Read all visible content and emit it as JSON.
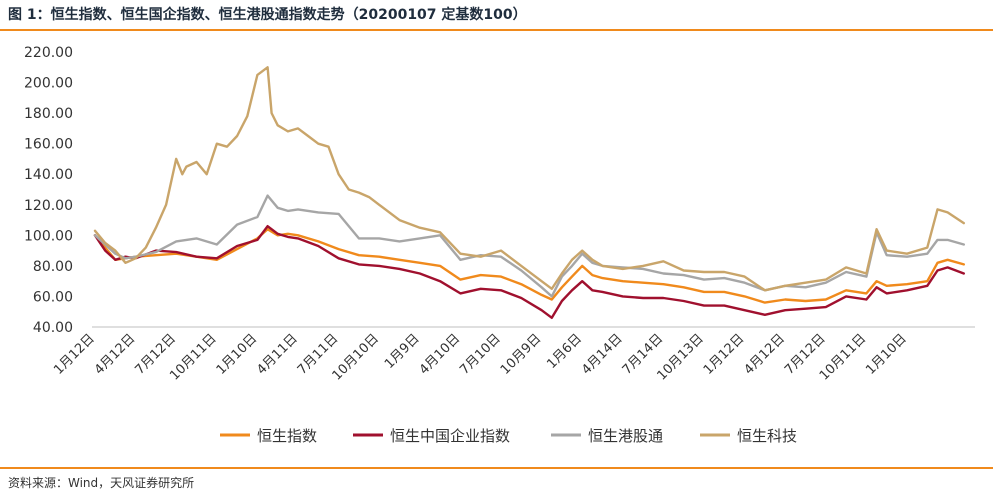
{
  "figure": {
    "title": "图 1：恒生指数、恒生国企指数、恒生港股通指数走势（20200107 定基数100）",
    "source": "资料来源：Wind，天风证券研究所"
  },
  "colors": {
    "accent_rule": "#f08a1c",
    "axis": "#bfbfbf"
  },
  "chart_data": {
    "type": "line",
    "title": "",
    "xlabel": "",
    "ylabel": "",
    "ylim": [
      40,
      220
    ],
    "y_ticks": [
      "40.00",
      "60.00",
      "80.00",
      "100.00",
      "120.00",
      "140.00",
      "160.00",
      "180.00",
      "200.00",
      "220.00"
    ],
    "x_tick_labels": [
      "1月12日",
      "4月12日",
      "7月12日",
      "10月11日",
      "1月10日",
      "4月11日",
      "7月11日",
      "10月10日",
      "1月9日",
      "4月10日",
      "7月10日",
      "10月9日",
      "1月6日",
      "4月14日",
      "7月14日",
      "10月13日",
      "1月12日",
      "4月12日",
      "7月12日",
      "10月11日",
      "1月10日"
    ],
    "x_tick_index": [
      0,
      1,
      2,
      3,
      4,
      5,
      6,
      7,
      8,
      9,
      10,
      11,
      12,
      13,
      14,
      15,
      16,
      17,
      18,
      19,
      20
    ],
    "x_range": [
      0,
      21.5
    ],
    "legend_position": "bottom",
    "series": [
      {
        "name": "恒生指数",
        "color": "#f08a1c",
        "x": [
          0,
          0.25,
          0.5,
          0.75,
          1,
          1.5,
          2,
          2.5,
          3,
          3.5,
          4,
          4.25,
          4.5,
          4.75,
          5,
          5.5,
          6,
          6.5,
          7,
          7.5,
          8,
          8.5,
          9,
          9.5,
          10,
          10.5,
          11,
          11.25,
          11.5,
          11.75,
          12,
          12.25,
          12.5,
          13,
          13.5,
          14,
          14.5,
          15,
          15.5,
          16,
          16.5,
          17,
          17.5,
          18,
          18.5,
          19,
          19.25,
          19.5,
          20,
          20.5,
          20.75,
          21,
          21.4
        ],
        "values": [
          100,
          92,
          84,
          85,
          86,
          87,
          88,
          86,
          84,
          91,
          98,
          104,
          100,
          101,
          100,
          96,
          91,
          87,
          86,
          84,
          82,
          80,
          71,
          74,
          73,
          68,
          61,
          58,
          66,
          73,
          80,
          74,
          72,
          70,
          69,
          68,
          66,
          63,
          63,
          60,
          56,
          58,
          57,
          58,
          64,
          62,
          70,
          67,
          68,
          70,
          82,
          84,
          81
        ]
      },
      {
        "name": "恒生中国企业指数",
        "color": "#a0102e",
        "x": [
          0,
          0.25,
          0.5,
          0.75,
          1,
          1.5,
          2,
          2.5,
          3,
          3.5,
          4,
          4.25,
          4.5,
          4.75,
          5,
          5.5,
          6,
          6.5,
          7,
          7.5,
          8,
          8.5,
          9,
          9.5,
          10,
          10.5,
          11,
          11.25,
          11.5,
          11.75,
          12,
          12.25,
          12.5,
          13,
          13.5,
          14,
          14.5,
          15,
          15.5,
          16,
          16.5,
          17,
          17.5,
          18,
          18.5,
          19,
          19.25,
          19.5,
          20,
          20.5,
          20.75,
          21,
          21.4
        ],
        "values": [
          100,
          90,
          84,
          86,
          85,
          90,
          89,
          86,
          85,
          93,
          97,
          106,
          101,
          99,
          98,
          93,
          85,
          81,
          80,
          78,
          75,
          70,
          62,
          65,
          64,
          59,
          51,
          46,
          57,
          64,
          70,
          64,
          63,
          60,
          59,
          59,
          57,
          54,
          54,
          51,
          48,
          51,
          52,
          53,
          60,
          58,
          66,
          62,
          64,
          67,
          77,
          79,
          75
        ]
      },
      {
        "name": "恒生港股通",
        "color": "#a6a6a6",
        "x": [
          0,
          0.25,
          0.5,
          0.75,
          1,
          1.5,
          2,
          2.5,
          3,
          3.5,
          4,
          4.25,
          4.5,
          4.75,
          5,
          5.5,
          6,
          6.5,
          7,
          7.5,
          8,
          8.5,
          9,
          9.5,
          10,
          10.5,
          11,
          11.25,
          11.5,
          11.75,
          12,
          12.25,
          12.5,
          13,
          13.5,
          14,
          14.5,
          15,
          15.5,
          16,
          16.5,
          17,
          17.5,
          18,
          18.5,
          19,
          19.25,
          19.5,
          20,
          20.5,
          20.75,
          21,
          21.4
        ],
        "values": [
          100,
          94,
          88,
          85,
          86,
          89,
          96,
          98,
          94,
          107,
          112,
          126,
          118,
          116,
          117,
          115,
          114,
          98,
          98,
          96,
          98,
          100,
          84,
          87,
          86,
          77,
          66,
          60,
          73,
          80,
          88,
          82,
          80,
          79,
          78,
          75,
          74,
          71,
          72,
          69,
          64,
          67,
          66,
          69,
          76,
          73,
          102,
          87,
          86,
          88,
          97,
          97,
          94
        ]
      },
      {
        "name": "恒生科技",
        "color": "#c9a56a",
        "x": [
          0,
          0.25,
          0.5,
          0.75,
          1,
          1.25,
          1.5,
          1.75,
          2,
          2.15,
          2.25,
          2.5,
          2.75,
          3,
          3.25,
          3.5,
          3.75,
          4,
          4.25,
          4.35,
          4.5,
          4.75,
          5,
          5.25,
          5.5,
          5.75,
          6,
          6.25,
          6.5,
          6.75,
          7,
          7.5,
          8,
          8.5,
          9,
          9.5,
          10,
          10.5,
          11,
          11.25,
          11.5,
          11.75,
          12,
          12.25,
          12.5,
          13,
          13.5,
          14,
          14.5,
          15,
          15.5,
          16,
          16.5,
          17,
          17.5,
          18,
          18.5,
          19,
          19.25,
          19.5,
          20,
          20.5,
          20.75,
          21,
          21.4
        ],
        "values": [
          103,
          95,
          90,
          82,
          85,
          92,
          105,
          120,
          150,
          140,
          145,
          148,
          140,
          160,
          158,
          165,
          178,
          205,
          210,
          180,
          172,
          168,
          170,
          165,
          160,
          158,
          140,
          130,
          128,
          125,
          120,
          110,
          105,
          102,
          88,
          86,
          90,
          80,
          70,
          65,
          75,
          84,
          90,
          84,
          80,
          78,
          80,
          83,
          77,
          76,
          76,
          73,
          64,
          67,
          69,
          71,
          79,
          75,
          104,
          90,
          88,
          92,
          117,
          115,
          108
        ]
      }
    ]
  }
}
